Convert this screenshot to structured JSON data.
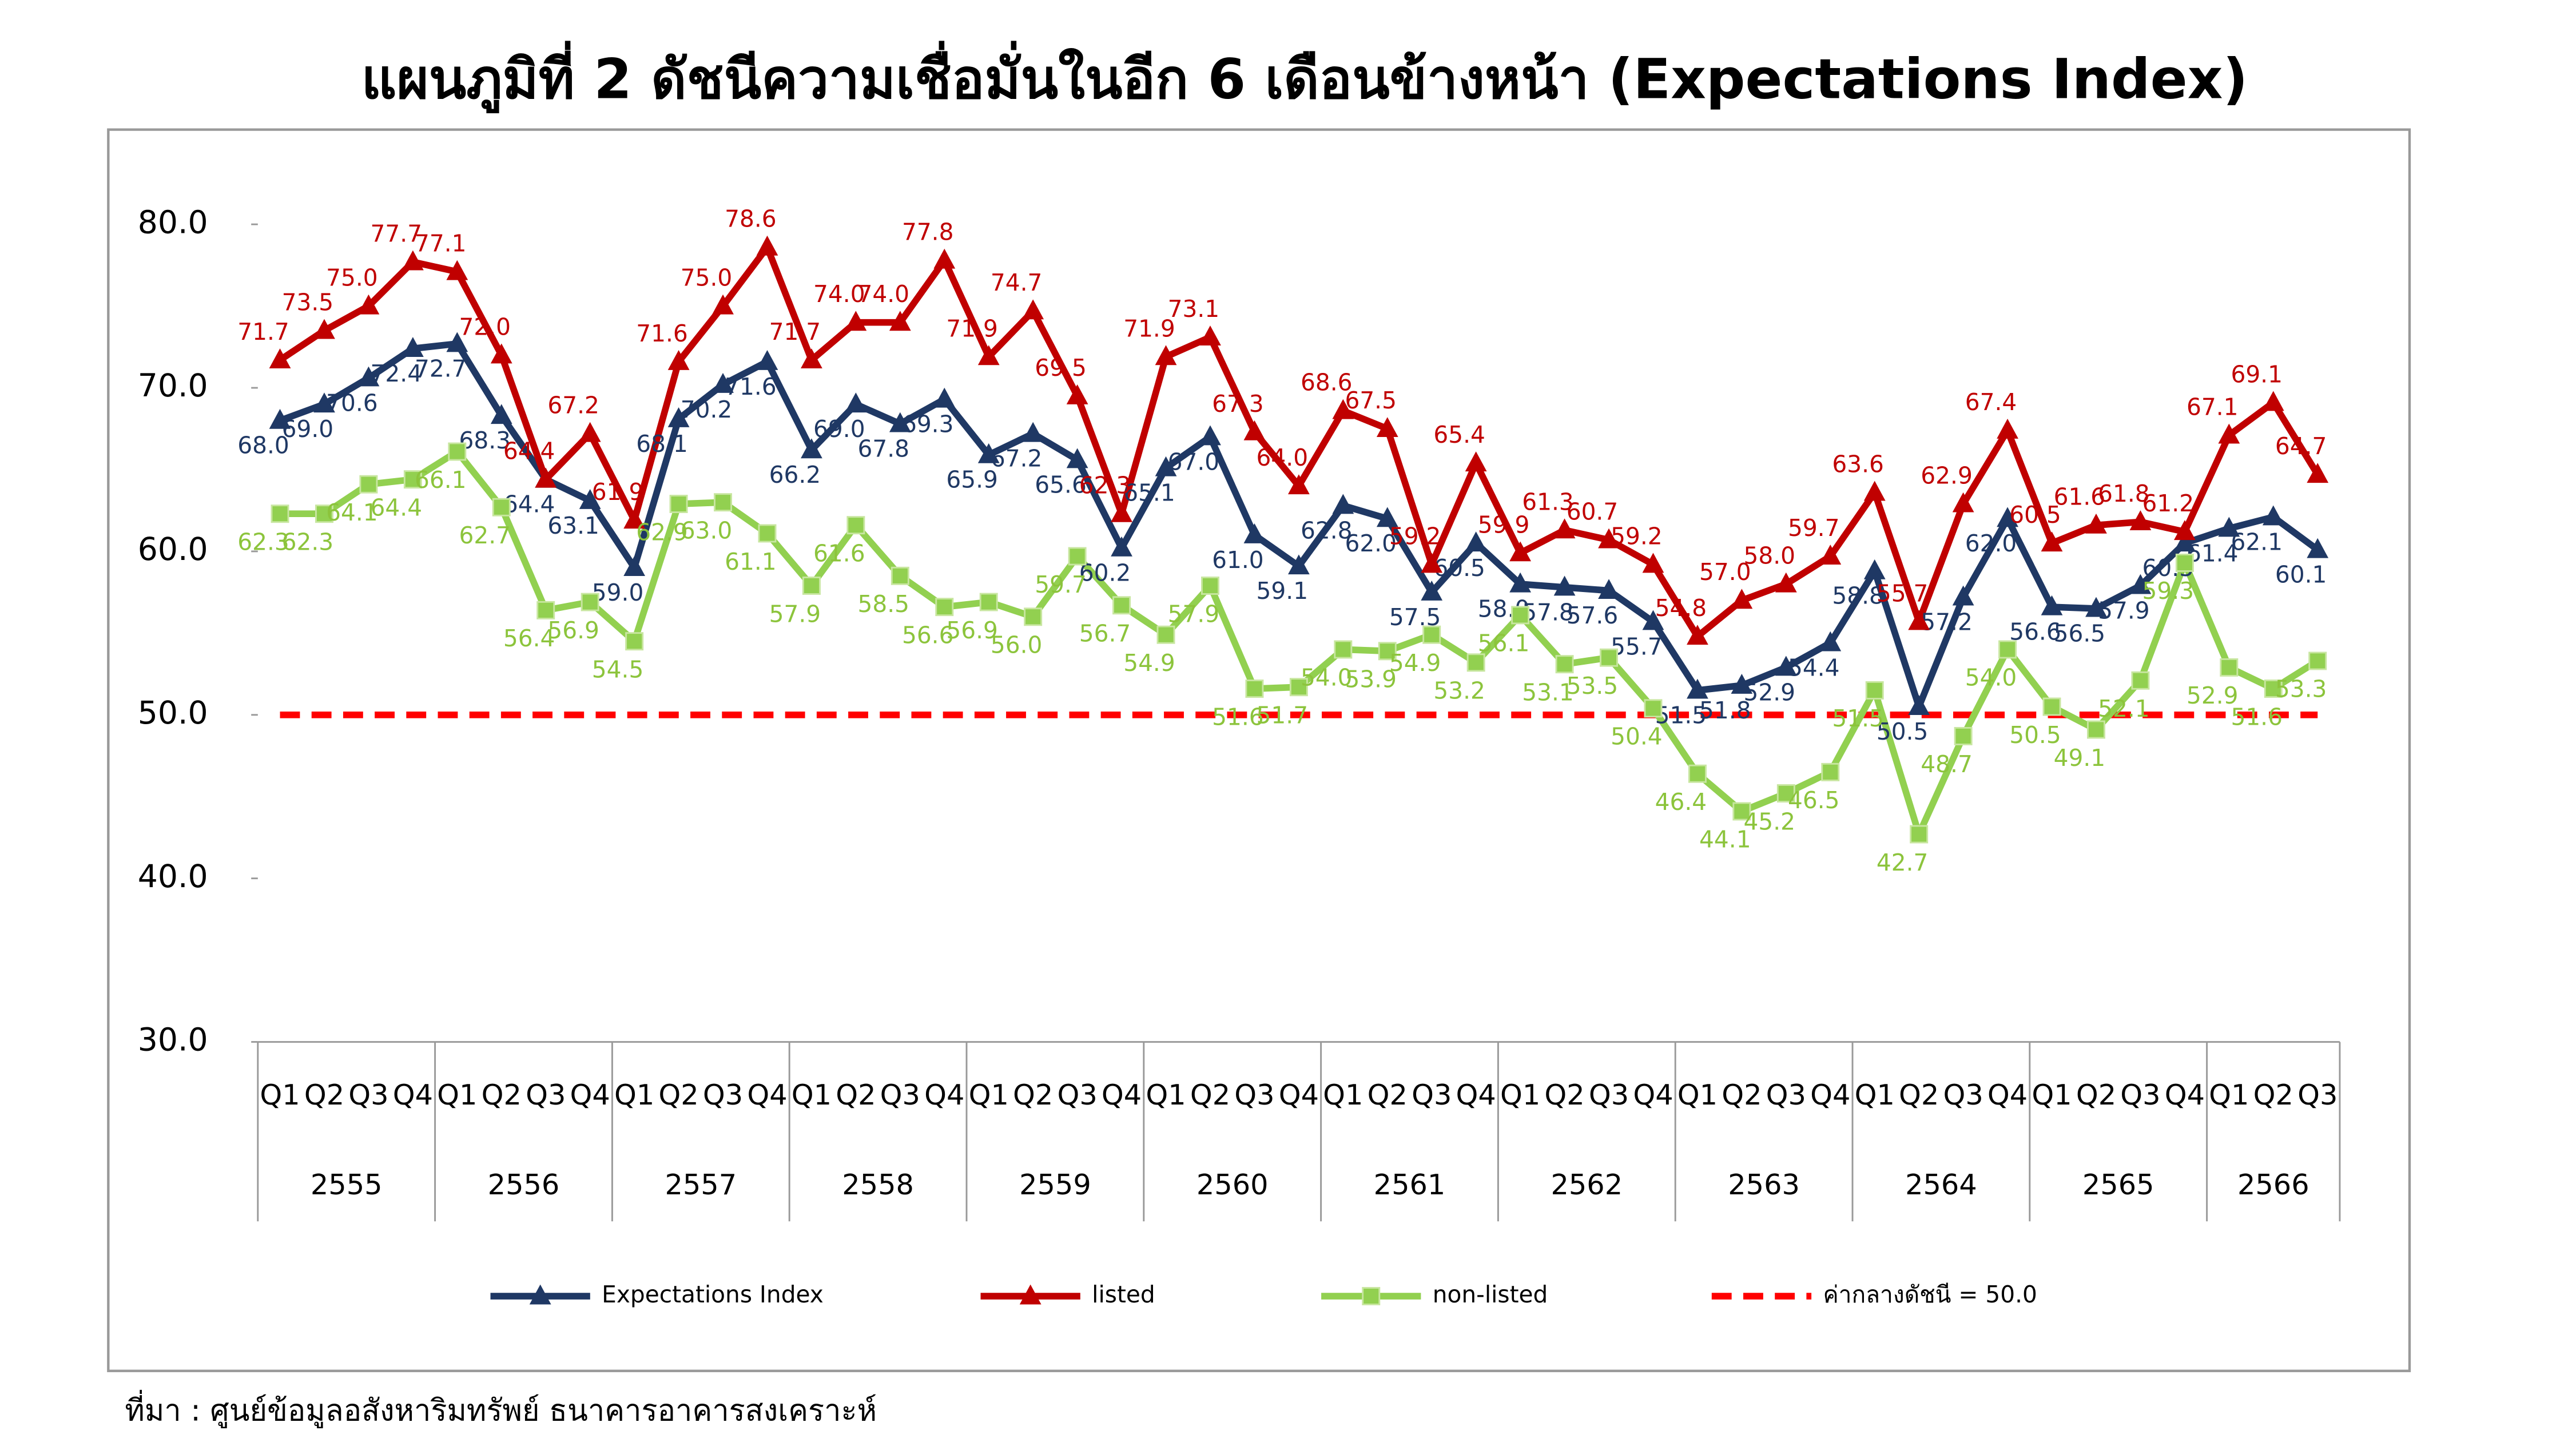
{
  "chart_data": {
    "type": "line",
    "title": "แผนภูมิที่ 2 ดัชนีความเชื่อมั่นในอีก 6 เดือนข้างหน้า (Expectations Index)",
    "source": "ที่มา : ศูนย์ข้อมูลอสังหาริมทรัพย์ ธนาคารอาคารสงเคราะห์",
    "groups": [
      {
        "label": "2555",
        "quarters": [
          "Q1",
          "Q2",
          "Q3",
          "Q4"
        ]
      },
      {
        "label": "2556",
        "quarters": [
          "Q1",
          "Q2",
          "Q3",
          "Q4"
        ]
      },
      {
        "label": "2557",
        "quarters": [
          "Q1",
          "Q2",
          "Q3",
          "Q4"
        ]
      },
      {
        "label": "2558",
        "quarters": [
          "Q1",
          "Q2",
          "Q3",
          "Q4"
        ]
      },
      {
        "label": "2559",
        "quarters": [
          "Q1",
          "Q2",
          "Q3",
          "Q4"
        ]
      },
      {
        "label": "2560",
        "quarters": [
          "Q1",
          "Q2",
          "Q3",
          "Q4"
        ]
      },
      {
        "label": "2561",
        "quarters": [
          "Q1",
          "Q2",
          "Q3",
          "Q4"
        ]
      },
      {
        "label": "2562",
        "quarters": [
          "Q1",
          "Q2",
          "Q3",
          "Q4"
        ]
      },
      {
        "label": "2563",
        "quarters": [
          "Q1",
          "Q2",
          "Q3",
          "Q4"
        ]
      },
      {
        "label": "2564",
        "quarters": [
          "Q1",
          "Q2",
          "Q3",
          "Q4"
        ]
      },
      {
        "label": "2565",
        "quarters": [
          "Q1",
          "Q2",
          "Q3",
          "Q4"
        ]
      },
      {
        "label": "2566",
        "quarters": [
          "Q1",
          "Q2",
          "Q3"
        ]
      }
    ],
    "series": [
      {
        "name": "Expectations Index",
        "color": "#1f3864",
        "marker": "triangle",
        "values": [
          68.0,
          69.0,
          70.6,
          72.4,
          72.7,
          68.3,
          64.4,
          63.1,
          59.0,
          68.1,
          70.2,
          71.6,
          66.2,
          69.0,
          67.8,
          69.3,
          65.9,
          67.2,
          65.6,
          60.2,
          65.1,
          67.0,
          61.0,
          59.1,
          62.8,
          62.0,
          57.5,
          60.5,
          58.0,
          57.8,
          57.6,
          55.7,
          51.5,
          51.8,
          52.9,
          54.4,
          58.8,
          50.5,
          57.2,
          62.0,
          56.6,
          56.5,
          57.9,
          60.5,
          61.4,
          62.1,
          60.1
        ],
        "value_labels": [
          "68.0",
          "69.0",
          "70.6",
          "72.4",
          "72.7",
          "68.3",
          "64.4",
          "63.1",
          "59.0",
          "68.1",
          "70.2",
          "71.6",
          "66.2",
          "69.0",
          "67.8",
          "69.3",
          "65.9",
          "67.2",
          "65.6",
          "60.2",
          "65.1",
          "67.0",
          "61.0",
          "59.1",
          "62.8",
          "62.0",
          "57.5",
          "60.5",
          "58.0",
          "57.8",
          "57.6",
          "55.7",
          "51.5",
          "51.8",
          "52.9",
          "54.4",
          "58.8",
          "50.5",
          "57.2",
          "62.0",
          "56.6",
          "56.5",
          "57.9",
          "60.5",
          "61.4",
          "62.1",
          "60.1"
        ]
      },
      {
        "name": "listed",
        "color": "#c00000",
        "marker": "triangle",
        "values": [
          71.7,
          73.5,
          75.0,
          77.7,
          77.1,
          72.0,
          64.4,
          67.2,
          61.9,
          71.6,
          75.0,
          78.6,
          71.7,
          74.0,
          74.0,
          77.8,
          71.9,
          74.7,
          69.5,
          62.3,
          71.9,
          73.1,
          67.3,
          64.0,
          68.6,
          67.5,
          59.2,
          65.4,
          59.9,
          61.3,
          60.7,
          59.2,
          54.8,
          57.0,
          58.0,
          59.7,
          63.6,
          55.7,
          62.9,
          67.4,
          60.5,
          61.6,
          61.8,
          61.2,
          67.1,
          69.1,
          64.7
        ],
        "value_labels": [
          "71.7",
          "73.5",
          "75.0",
          "77.7",
          "77.1",
          "72.0",
          "64.4",
          "67.2",
          "61.9",
          "71.6",
          "75.0",
          "78.6",
          "71.7",
          "74.0",
          "74.0",
          "77.8",
          "71.9",
          "74.7",
          "69.5",
          "62.3",
          "71.9",
          "73.1",
          "67.3",
          "64.0",
          "68.6",
          "67.5",
          "59.2",
          "65.4",
          "59.9",
          "61.3",
          "60.7",
          "59.2",
          "54.8",
          "57.0",
          "58.0",
          "59.7",
          "63.6",
          "55.7",
          "62.9",
          "67.4",
          "60.5",
          "61.6",
          "61.8",
          "61.2",
          "67.1",
          "69.1",
          "64.7"
        ]
      },
      {
        "name": "non-listed",
        "color": "#92d050",
        "marker": "square",
        "values": [
          62.3,
          62.3,
          64.1,
          64.4,
          66.1,
          62.7,
          56.4,
          56.9,
          54.5,
          62.9,
          63.0,
          61.1,
          57.9,
          61.6,
          58.5,
          56.6,
          56.9,
          56.0,
          59.7,
          56.7,
          54.9,
          57.9,
          51.6,
          51.7,
          54.0,
          53.9,
          54.9,
          53.2,
          56.1,
          53.1,
          53.5,
          50.4,
          46.4,
          44.1,
          45.2,
          46.5,
          51.5,
          42.7,
          48.7,
          54.0,
          50.5,
          49.1,
          52.1,
          59.3,
          52.9,
          51.6,
          53.3
        ],
        "value_labels": [
          "62.3",
          "62.3",
          "64.1",
          "64.4",
          "66.1",
          "62.7",
          "56.4",
          "56.9",
          "54.5",
          "62.9",
          "63.0",
          "61.1",
          "57.9",
          "61.6",
          "58.5",
          "56.6",
          "56.9",
          "56.0",
          "59.7",
          "56.7",
          "54.9",
          "57.9",
          "51.6",
          "51.7",
          "54.0",
          "53.9",
          "54.9",
          "53.2",
          "56.1",
          "53.1",
          "53.5",
          "50.4",
          "46.4",
          "44.1",
          "45.2",
          "46.5",
          "51.5",
          "42.7",
          "48.7",
          "54.0",
          "50.5",
          "49.1",
          "52.1",
          "59.3",
          "52.9",
          "51.6",
          "53.3"
        ]
      }
    ],
    "reference": {
      "name": "ค่ากลางดัชนี = 50.0",
      "value": 50,
      "color": "#ff0000"
    },
    "ylim": [
      30,
      80
    ],
    "yticks": [
      {
        "value": 30,
        "label": "30.0"
      },
      {
        "value": 40,
        "label": "40.0"
      },
      {
        "value": 50,
        "label": "50.0"
      },
      {
        "value": 60,
        "label": "60.0"
      },
      {
        "value": 70,
        "label": "70.0"
      },
      {
        "value": 80,
        "label": "80.0"
      }
    ],
    "legend": "bottom"
  }
}
